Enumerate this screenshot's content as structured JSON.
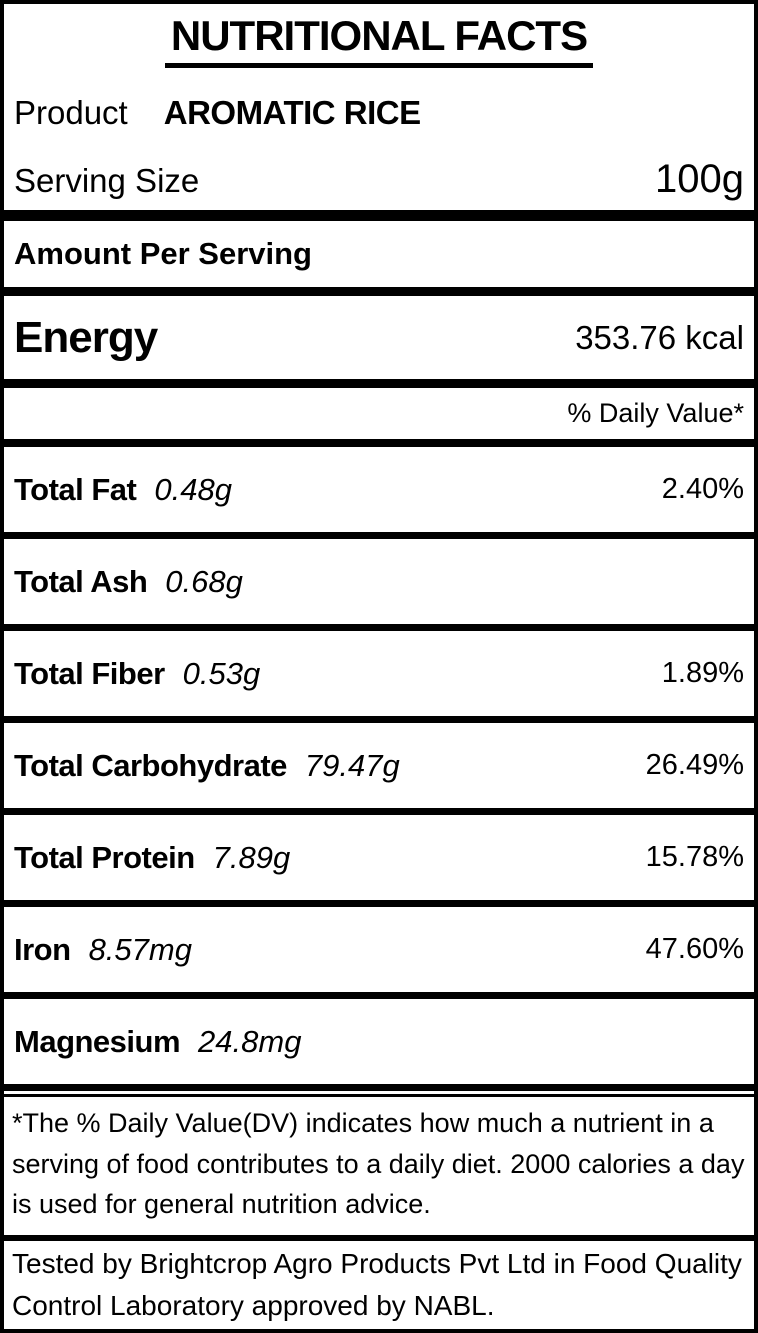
{
  "colors": {
    "background": "#ffffff",
    "text": "#000000",
    "border": "#000000"
  },
  "label": {
    "title": "NUTRITIONAL FACTS",
    "product_label": "Product",
    "product_name": "AROMATIC RICE",
    "serving_size_label": "Serving Size",
    "serving_size_value": "100g",
    "amount_per_serving": "Amount Per Serving",
    "energy_label": "Energy",
    "energy_value": "353.76 kcal",
    "daily_value_header": "% Daily Value*",
    "nutrients": [
      {
        "name": "Total Fat",
        "amount": "0.48g",
        "dv": "2.40%"
      },
      {
        "name": "Total Ash",
        "amount": "0.68g",
        "dv": ""
      },
      {
        "name": "Total Fiber",
        "amount": "0.53g",
        "dv": "1.89%"
      },
      {
        "name": "Total Carbohydrate",
        "amount": "79.47g",
        "dv": "26.49%"
      },
      {
        "name": "Total Protein",
        "amount": "7.89g",
        "dv": "15.78%"
      },
      {
        "name": "Iron",
        "amount": "8.57mg",
        "dv": "47.60%"
      },
      {
        "name": "Magnesium",
        "amount": "24.8mg",
        "dv": ""
      }
    ],
    "footnote": "*The % Daily Value(DV) indicates how much a nutrient in a serving of food contributes to a daily diet. 2000 calories a day is used for general nutrition advice.",
    "tested_by": "Tested by Brightcrop Agro Products Pvt Ltd in Food Quality Control Laboratory approved by NABL."
  }
}
